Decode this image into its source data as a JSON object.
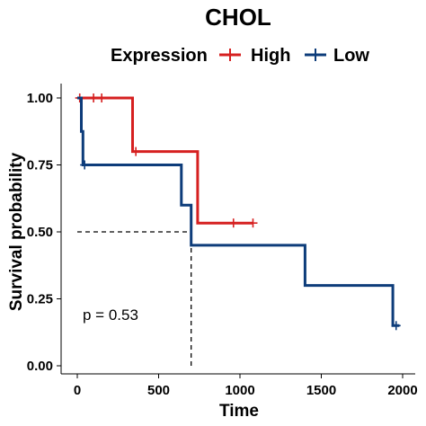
{
  "chart_data": {
    "type": "line",
    "title": "CHOL",
    "legend": {
      "title": "Expression",
      "position": "top"
    },
    "xlabel": "Time",
    "ylabel": "Survival probability",
    "xlim": [
      0,
      2000
    ],
    "ylim": [
      0,
      1
    ],
    "x_ticks": [
      "0",
      "500",
      "1000",
      "1500",
      "2000"
    ],
    "y_ticks": [
      "0.00",
      "0.25",
      "0.50",
      "0.75",
      "1.00"
    ],
    "grid": false,
    "series": [
      {
        "name": "High",
        "color": "#d62020",
        "steps": [
          [
            0,
            1.0
          ],
          [
            340,
            1.0
          ],
          [
            340,
            0.8
          ],
          [
            740,
            0.8
          ],
          [
            740,
            0.533
          ],
          [
            1080,
            0.533
          ]
        ],
        "censored": [
          [
            15,
            1.0
          ],
          [
            100,
            1.0
          ],
          [
            150,
            1.0
          ],
          [
            360,
            0.8
          ],
          [
            960,
            0.533
          ],
          [
            1080,
            0.533
          ]
        ]
      },
      {
        "name": "Low",
        "color": "#0d3c7a",
        "steps": [
          [
            0,
            1.0
          ],
          [
            25,
            1.0
          ],
          [
            25,
            0.875
          ],
          [
            35,
            0.875
          ],
          [
            35,
            0.75
          ],
          [
            640,
            0.75
          ],
          [
            640,
            0.6
          ],
          [
            700,
            0.6
          ],
          [
            700,
            0.45
          ],
          [
            1400,
            0.45
          ],
          [
            1400,
            0.3
          ],
          [
            1940,
            0.3
          ],
          [
            1940,
            0.15
          ],
          [
            1980,
            0.15
          ]
        ],
        "censored": [
          [
            45,
            0.75
          ],
          [
            1960,
            0.15
          ]
        ]
      }
    ],
    "median_line": {
      "y": 0.5,
      "x": 700
    },
    "annotations": [
      {
        "text": "p = 0.53",
        "x": 40,
        "y": 0.19
      }
    ]
  }
}
